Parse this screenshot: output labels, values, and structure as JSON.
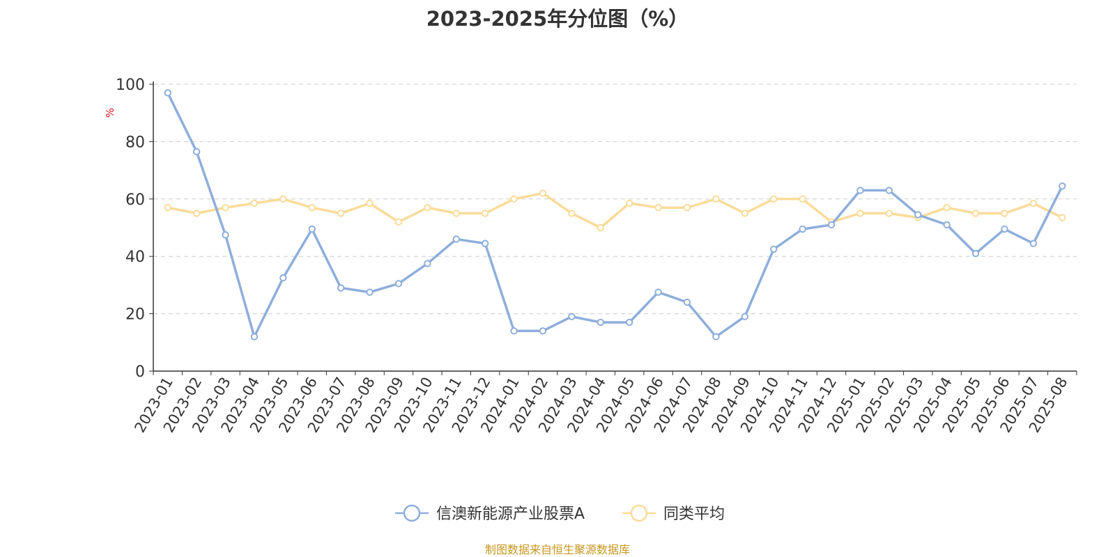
{
  "chart_data": {
    "type": "line",
    "title": "2023-2025年分位图（%）",
    "ylabel": "%",
    "ylim": [
      0,
      100
    ],
    "yticks": [
      0,
      20,
      40,
      60,
      80,
      100
    ],
    "grid": true,
    "legend_position": "bottom",
    "categories": [
      "2023-01",
      "2023-02",
      "2023-03",
      "2023-04",
      "2023-05",
      "2023-06",
      "2023-07",
      "2023-08",
      "2023-09",
      "2023-10",
      "2023-11",
      "2023-12",
      "2024-01",
      "2024-02",
      "2024-03",
      "2024-04",
      "2024-05",
      "2024-06",
      "2024-07",
      "2024-08",
      "2024-09",
      "2024-10",
      "2024-11",
      "2024-12",
      "2025-01",
      "2025-02",
      "2025-03",
      "2025-04",
      "2025-05",
      "2025-06",
      "2025-07",
      "2025-08"
    ],
    "series": [
      {
        "name": "信澳新能源产业股票A",
        "color": "#8eaedb",
        "values": [
          97,
          76.5,
          47.5,
          12,
          32.5,
          49.5,
          29,
          27.5,
          30.5,
          37.5,
          46,
          44.5,
          14,
          14,
          19,
          17,
          17,
          27.5,
          24,
          12,
          19,
          42.5,
          49.5,
          51,
          63,
          63,
          54.5,
          51,
          41,
          49.5,
          44.5,
          64.5
        ]
      },
      {
        "name": "同类平均",
        "color": "#fadb98",
        "values": [
          57,
          55,
          57,
          58.5,
          60,
          57,
          55,
          58.5,
          52,
          57,
          55,
          55,
          60,
          62,
          55,
          50,
          58.5,
          57,
          57,
          60,
          55,
          60,
          60,
          52,
          55,
          55,
          53.5,
          57,
          55,
          55,
          58.5,
          53.5
        ]
      }
    ]
  },
  "source_note": "制图数据来自恒生聚源数据库"
}
